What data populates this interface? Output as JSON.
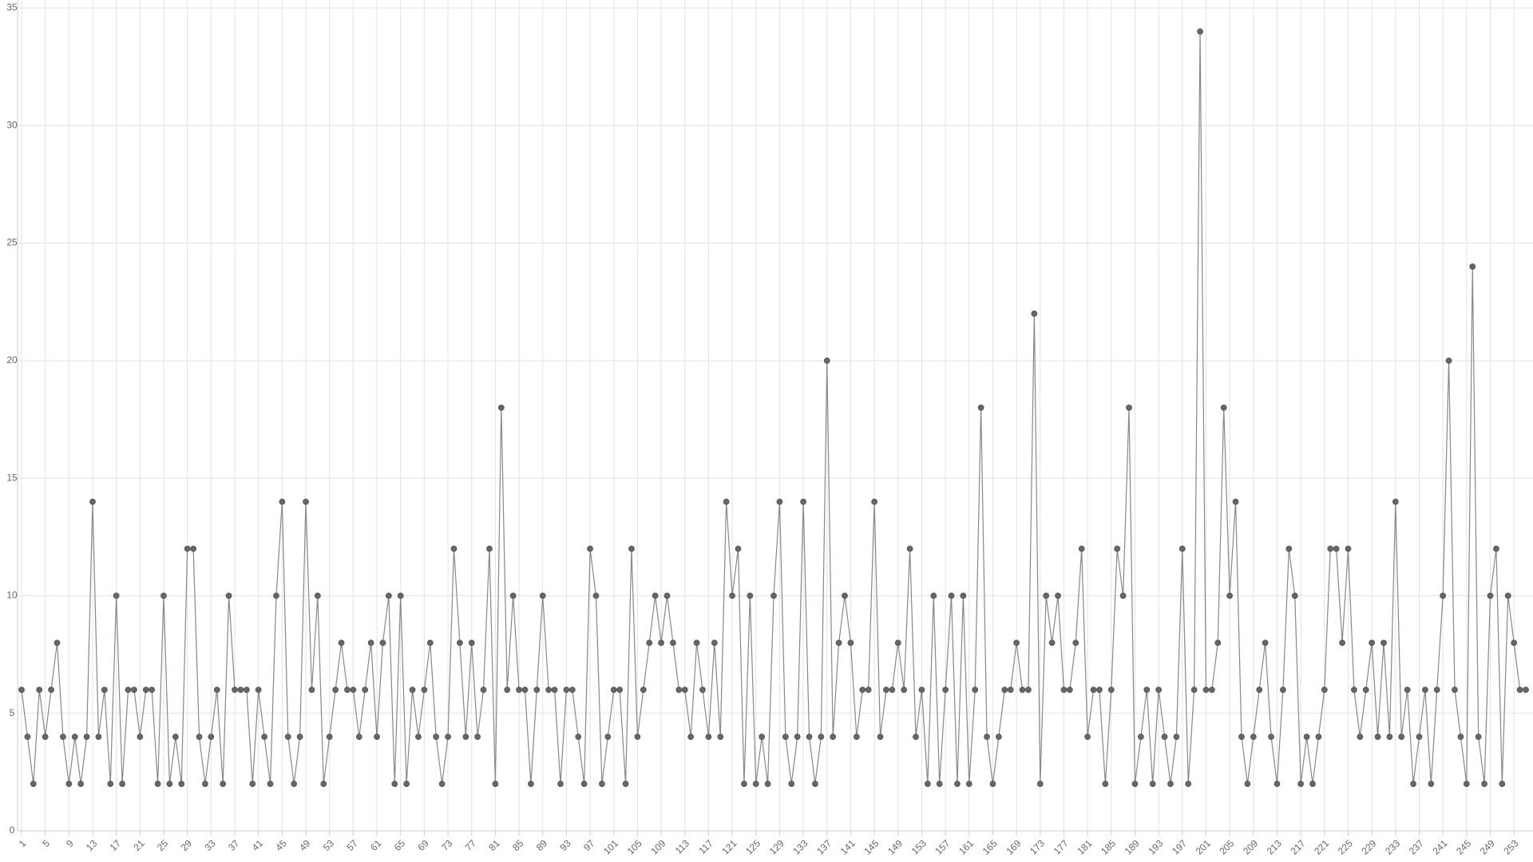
{
  "chart_data": {
    "type": "line",
    "categories": [
      1,
      null,
      null,
      null,
      5,
      null,
      null,
      null,
      9,
      null,
      null,
      null,
      13,
      null,
      null,
      null,
      17,
      null,
      null,
      null,
      21,
      null,
      null,
      null,
      25,
      null,
      null,
      null,
      29,
      null,
      null,
      null,
      33,
      null,
      null,
      null,
      37,
      null,
      null,
      null,
      41,
      null,
      null,
      null,
      45,
      null,
      null,
      null,
      49,
      null,
      null,
      null,
      53,
      null,
      null,
      null,
      57,
      null,
      null,
      null,
      61,
      null,
      null,
      null,
      65,
      null,
      null,
      null,
      69,
      null,
      null,
      null,
      73,
      null,
      null,
      null,
      77,
      null,
      null,
      null,
      81,
      null,
      null,
      null,
      85,
      null,
      null,
      null,
      89,
      null,
      null,
      null,
      93,
      null,
      null,
      null,
      97,
      null,
      null,
      null,
      101,
      null,
      null,
      null,
      105,
      null,
      null,
      null,
      109,
      null,
      null,
      null,
      113,
      null,
      null,
      null,
      117,
      null,
      null,
      null,
      121,
      null,
      null,
      null,
      125,
      null,
      null,
      null,
      129,
      null,
      null,
      null,
      133,
      null,
      null,
      null,
      137,
      null,
      null,
      null,
      141,
      null,
      null,
      null,
      145,
      null,
      null,
      null,
      149,
      null,
      null,
      null,
      153,
      null,
      null,
      null,
      157,
      null,
      null,
      null,
      161,
      null,
      null,
      null,
      165,
      null,
      null,
      null,
      169,
      null,
      null,
      null,
      173,
      null,
      null,
      null,
      177,
      null,
      null,
      null,
      181,
      null,
      null,
      null,
      185,
      null,
      null,
      null,
      189,
      null,
      null,
      null,
      193,
      null,
      null,
      null,
      197,
      null,
      null,
      null,
      201,
      null,
      null,
      null,
      205,
      null,
      null,
      null,
      209,
      null,
      null,
      null,
      213,
      null,
      null,
      null,
      217,
      null,
      null,
      null,
      221,
      null,
      null,
      null,
      225,
      null,
      null,
      null,
      229,
      null,
      null,
      null,
      233,
      null,
      null,
      null,
      237,
      null,
      null,
      null,
      241,
      null,
      null,
      null,
      245,
      null,
      null,
      null,
      249,
      null,
      null,
      null,
      253,
      null,
      null
    ],
    "values": [
      6,
      4,
      2,
      6,
      4,
      6,
      8,
      4,
      2,
      4,
      2,
      4,
      14,
      4,
      6,
      2,
      10,
      2,
      6,
      6,
      4,
      6,
      6,
      2,
      10,
      2,
      4,
      2,
      12,
      12,
      4,
      2,
      4,
      6,
      2,
      10,
      6,
      6,
      6,
      2,
      6,
      4,
      2,
      10,
      14,
      4,
      2,
      4,
      14,
      6,
      10,
      2,
      4,
      6,
      8,
      6,
      6,
      4,
      6,
      8,
      4,
      8,
      10,
      2,
      10,
      2,
      6,
      4,
      6,
      8,
      4,
      2,
      4,
      12,
      8,
      4,
      8,
      4,
      6,
      12,
      2,
      18,
      6,
      10,
      6,
      6,
      2,
      6,
      10,
      6,
      6,
      2,
      6,
      6,
      4,
      2,
      12,
      10,
      2,
      4,
      6,
      6,
      2,
      12,
      4,
      6,
      8,
      10,
      8,
      10,
      8,
      6,
      6,
      4,
      8,
      6,
      4,
      8,
      4,
      14,
      10,
      12,
      2,
      10,
      2,
      4,
      2,
      10,
      14,
      4,
      2,
      4,
      14,
      4,
      2,
      4,
      20,
      4,
      8,
      10,
      8,
      4,
      6,
      6,
      14,
      4,
      6,
      6,
      8,
      6,
      12,
      4,
      6,
      2,
      10,
      2,
      6,
      10,
      2,
      10,
      2,
      6,
      18,
      4,
      2,
      4,
      6,
      6,
      8,
      6,
      6,
      22,
      2,
      10,
      8,
      10,
      6,
      6,
      8,
      12,
      4,
      6,
      6,
      2,
      6,
      12,
      10,
      18,
      2,
      4,
      6,
      2,
      6,
      4,
      2,
      4,
      12,
      2,
      6,
      34,
      6,
      6,
      8,
      18,
      10,
      14,
      4,
      2,
      4,
      6,
      8,
      4,
      2,
      6,
      12,
      10,
      2,
      4,
      2,
      4,
      6,
      12,
      12,
      8,
      12,
      6,
      4,
      6,
      8,
      4,
      8,
      4,
      14,
      4,
      6,
      2,
      4,
      6,
      2,
      6,
      10,
      20,
      6,
      4,
      2,
      24,
      4,
      2,
      10,
      12,
      2,
      10,
      8,
      6,
      6
    ],
    "color": "#666666",
    "ylim": [
      0,
      35
    ],
    "yticks": [
      0,
      5,
      10,
      15,
      20,
      25,
      30,
      35
    ],
    "grid": true
  }
}
